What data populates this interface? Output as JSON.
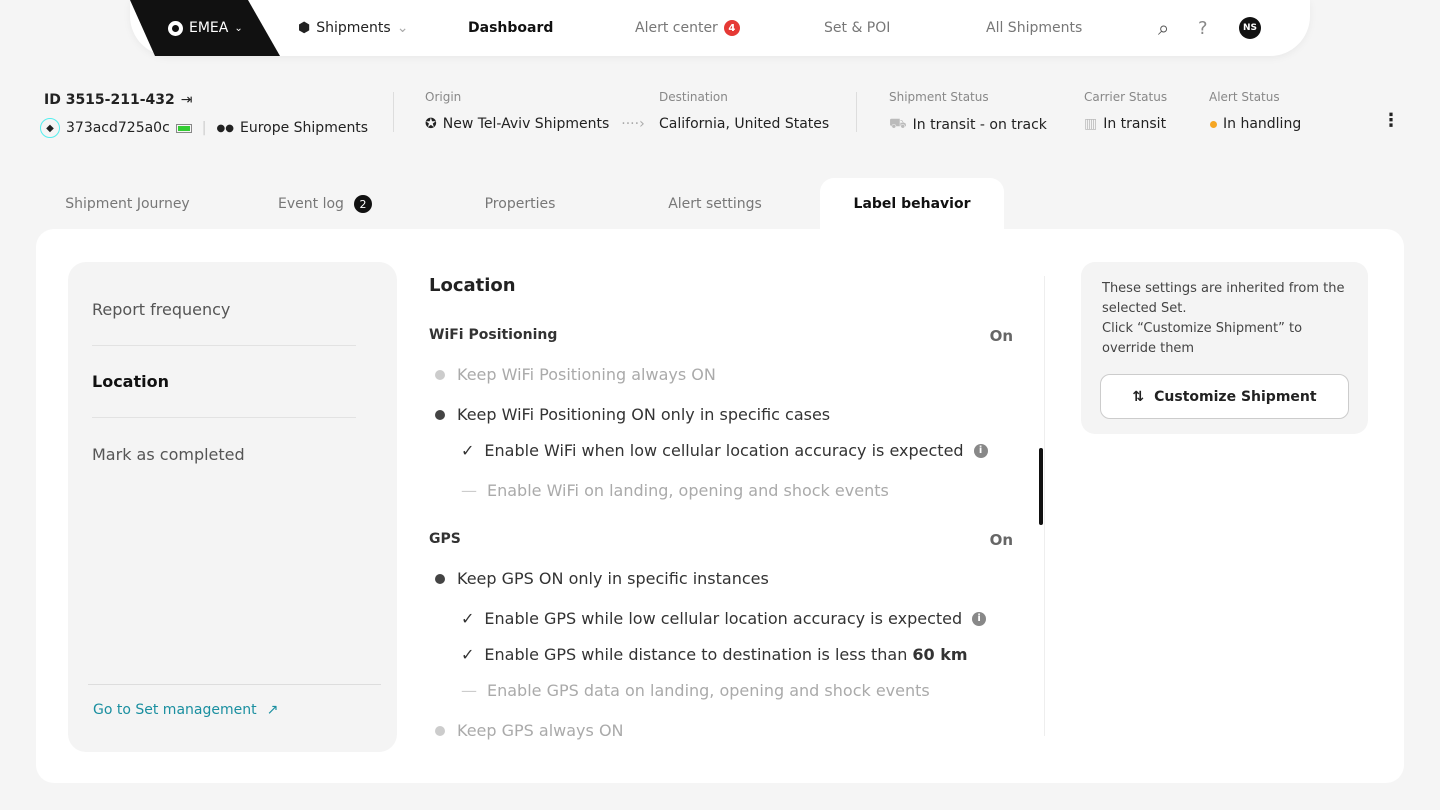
{
  "nav": {
    "region": "EMEA",
    "shipments": "Shipments",
    "dashboard": "Dashboard",
    "alert_center": "Alert center",
    "alert_count": "4",
    "set_poi": "Set & POI",
    "all_shipments": "All Shipments",
    "avatar": "NS"
  },
  "shipment": {
    "id": "ID 3515-211-432",
    "label_id": "373acd725a0c",
    "set_name": "Europe Shipments",
    "origin_label": "Origin",
    "origin": "New Tel-Aviv Shipments",
    "destination_label": "Destination",
    "destination": "California, United States",
    "shipment_status_label": "Shipment Status",
    "shipment_status": "In transit - on track",
    "carrier_status_label": "Carrier Status",
    "carrier_status": "In transit",
    "alert_status_label": "Alert Status",
    "alert_status": "In handling",
    "alert_status_color": "#f5a623"
  },
  "tabs": [
    {
      "label": "Shipment Journey"
    },
    {
      "label": "Event log",
      "badge": "2"
    },
    {
      "label": "Properties"
    },
    {
      "label": "Alert settings"
    },
    {
      "label": "Label behavior",
      "active": true
    }
  ],
  "sidebar": {
    "items": [
      {
        "label": "Report frequency"
      },
      {
        "label": "Location",
        "active": true
      },
      {
        "label": "Mark as completed"
      }
    ],
    "link": "Go to Set management"
  },
  "location": {
    "title": "Location",
    "wifi": {
      "title": "WiFi Positioning",
      "status": "On",
      "options": [
        {
          "type": "radio-off",
          "text": "Keep WiFi Positioning always ON"
        },
        {
          "type": "radio-on",
          "text": "Keep WiFi Positioning ON only in specific cases"
        },
        {
          "type": "check",
          "text": "Enable WiFi when low cellular location accuracy is expected",
          "info": true
        },
        {
          "type": "dash",
          "text": "Enable WiFi on landing, opening and shock events"
        }
      ]
    },
    "gps": {
      "title": "GPS",
      "status": "On",
      "options": [
        {
          "type": "radio-on",
          "text": "Keep GPS ON only in specific instances"
        },
        {
          "type": "check",
          "text": "Enable GPS while low cellular location accuracy is expected",
          "info": true
        },
        {
          "type": "check",
          "text": "Enable GPS while distance to destination is less than",
          "bold": "60 km"
        },
        {
          "type": "dash",
          "text": "Enable GPS data on landing, opening and shock events"
        },
        {
          "type": "radio-off",
          "text": "Keep GPS always ON"
        }
      ]
    }
  },
  "info_panel": {
    "text": "These settings are inherited from the selected Set.",
    "text2": "Click “Customize Shipment” to override them",
    "button": "Customize Shipment"
  }
}
